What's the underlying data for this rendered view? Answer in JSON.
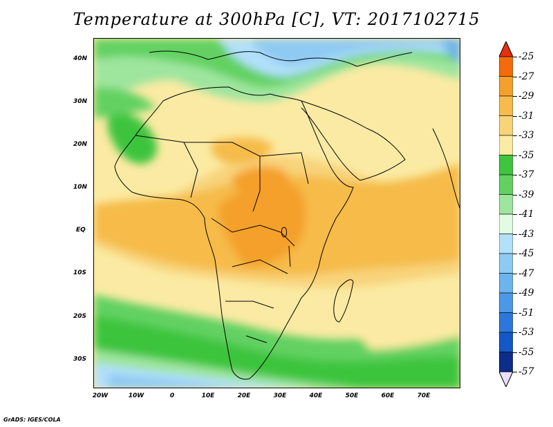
{
  "title": "Temperature at 300hPa [C], VT: 2017102715",
  "credit": "GrADS: IGES/COLA",
  "map": {
    "lat_ticks": [
      "40N",
      "30N",
      "20N",
      "10N",
      "EQ",
      "10S",
      "20S",
      "30S"
    ],
    "lon_ticks": [
      "20W",
      "10W",
      "0",
      "10E",
      "20E",
      "30E",
      "40E",
      "50E",
      "60E",
      "70E"
    ],
    "extent": {
      "lon_min": -23,
      "lon_max": 79,
      "lat_min": -37,
      "lat_max": 45
    }
  },
  "colorbar": {
    "labels": [
      "-25",
      "-27",
      "-29",
      "-31",
      "-33",
      "-35",
      "-37",
      "-39",
      "-41",
      "-43",
      "-45",
      "-47",
      "-49",
      "-51",
      "-53",
      "-55",
      "-57"
    ],
    "colors": [
      "#e8300d",
      "#f46b0b",
      "#f4a02a",
      "#f6bb4a",
      "#f8d37a",
      "#fbeaa3",
      "#3ec43e",
      "#62d162",
      "#9ee59e",
      "#e1fde1",
      "#b2e0fb",
      "#8fcaf3",
      "#6db3ec",
      "#4b98e6",
      "#2d77da",
      "#1657c7",
      "#0d2d8a"
    ],
    "top_arrow_color": "#e8300d",
    "bottom_arrow_color": "#e8e0f8"
  }
}
